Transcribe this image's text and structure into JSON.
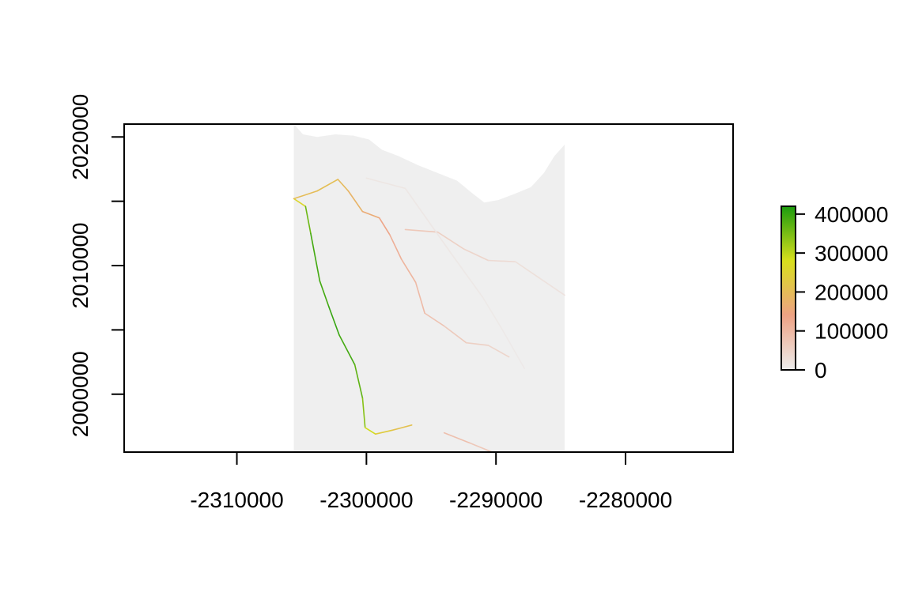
{
  "chart_data": {
    "type": "heatmap",
    "title": "",
    "xlabel": "",
    "ylabel": "",
    "xlim": [
      -2318700,
      -2271700
    ],
    "ylim": [
      1995500,
      2021000
    ],
    "x_ticks": [
      -2310000,
      -2300000,
      -2290000,
      -2280000
    ],
    "x_tick_labels": [
      "-2310000",
      "-2300000",
      "-2290000",
      "-2280000"
    ],
    "y_ticks": [
      2000000,
      2005000,
      2010000,
      2015000,
      2020000
    ],
    "y_tick_labels": [
      "2000000",
      "",
      "2010000",
      "",
      "2020000"
    ],
    "raster_extent": {
      "x": [
        -2305600,
        -2284700
      ],
      "y": [
        1995500,
        2021000
      ]
    },
    "background_value": 0,
    "nodata_boundary": [
      [
        -2305600,
        2021000
      ],
      [
        -2304900,
        2020200
      ],
      [
        -2303800,
        2020000
      ],
      [
        -2302400,
        2020200
      ],
      [
        -2301000,
        2020100
      ],
      [
        -2299800,
        2019800
      ],
      [
        -2298800,
        2019000
      ],
      [
        -2297500,
        2018500
      ],
      [
        -2296000,
        2017800
      ],
      [
        -2294500,
        2017200
      ],
      [
        -2293000,
        2016600
      ],
      [
        -2291800,
        2015600
      ],
      [
        -2290900,
        2014900
      ],
      [
        -2289800,
        2015100
      ],
      [
        -2288500,
        2015600
      ],
      [
        -2287300,
        2016100
      ],
      [
        -2286300,
        2017200
      ],
      [
        -2285500,
        2018500
      ],
      [
        -2284700,
        2019400
      ]
    ],
    "series": [
      {
        "name": "",
        "values": [
          [
            -2305600,
            2015200,
            200000
          ],
          [
            -2304700,
            2014600,
            320000
          ],
          [
            -2304300,
            2012500,
            400000
          ],
          [
            -2303600,
            2008800,
            380000
          ],
          [
            -2302900,
            2006800,
            400000
          ],
          [
            -2302100,
            2004600,
            400000
          ],
          [
            -2300900,
            2002300,
            380000
          ],
          [
            -2300300,
            1999700,
            360000
          ],
          [
            -2300100,
            1997400,
            320000
          ],
          [
            -2299300,
            1996900,
            250000
          ],
          [
            -2298000,
            1997200,
            220000
          ],
          [
            -2296500,
            1997600,
            200000
          ]
        ]
      },
      {
        "name": "",
        "values": [
          [
            -2305600,
            2015200,
            190000
          ],
          [
            -2303800,
            2015800,
            210000
          ],
          [
            -2302200,
            2016700,
            200000
          ],
          [
            -2301400,
            2015800,
            190000
          ],
          [
            -2300300,
            2014200,
            170000
          ],
          [
            -2299000,
            2013700,
            150000
          ],
          [
            -2298200,
            2012400,
            120000
          ],
          [
            -2297300,
            2010500,
            110000
          ],
          [
            -2296200,
            2008700,
            100000
          ],
          [
            -2295500,
            2006300,
            90000
          ],
          [
            -2294000,
            2005300,
            70000
          ],
          [
            -2292300,
            2004000,
            60000
          ],
          [
            -2290600,
            2003800,
            50000
          ],
          [
            -2289000,
            2002900,
            40000
          ]
        ]
      },
      {
        "name": "",
        "values": [
          [
            -2297000,
            2012800,
            80000
          ],
          [
            -2294500,
            2012600,
            60000
          ],
          [
            -2292500,
            2011300,
            50000
          ],
          [
            -2290600,
            2010400,
            40000
          ],
          [
            -2288500,
            2010300,
            30000
          ],
          [
            -2286600,
            2009000,
            20000
          ],
          [
            -2284700,
            2007700,
            20000
          ]
        ]
      },
      {
        "name": "",
        "values": [
          [
            -2294000,
            1997000,
            90000
          ],
          [
            -2292000,
            1996200,
            80000
          ],
          [
            -2290300,
            1995500,
            60000
          ]
        ]
      },
      {
        "name": "",
        "values": [
          [
            -2300000,
            2016800,
            15000
          ],
          [
            -2297000,
            2016000,
            12000
          ],
          [
            -2293500,
            2011000,
            10000
          ],
          [
            -2291000,
            2007500,
            8000
          ],
          [
            -2289500,
            2005000,
            8000
          ],
          [
            -2287800,
            2002000,
            6000
          ]
        ]
      }
    ],
    "legend": {
      "type": "colorbar",
      "placement": "right",
      "min": 0,
      "max": 420000,
      "ticks": [
        0,
        100000,
        200000,
        300000,
        400000
      ],
      "tick_labels": [
        "0",
        "100000",
        "200000",
        "300000",
        "400000"
      ],
      "colors": [
        "#ededed",
        "#eea284",
        "#d8df1c",
        "#1b9b0e"
      ]
    },
    "colors": {
      "raster_fill": "#efefef",
      "low": "#ededed",
      "mid_low": "#eea284",
      "mid_high": "#d8df1c",
      "high": "#1b9b0e"
    }
  }
}
